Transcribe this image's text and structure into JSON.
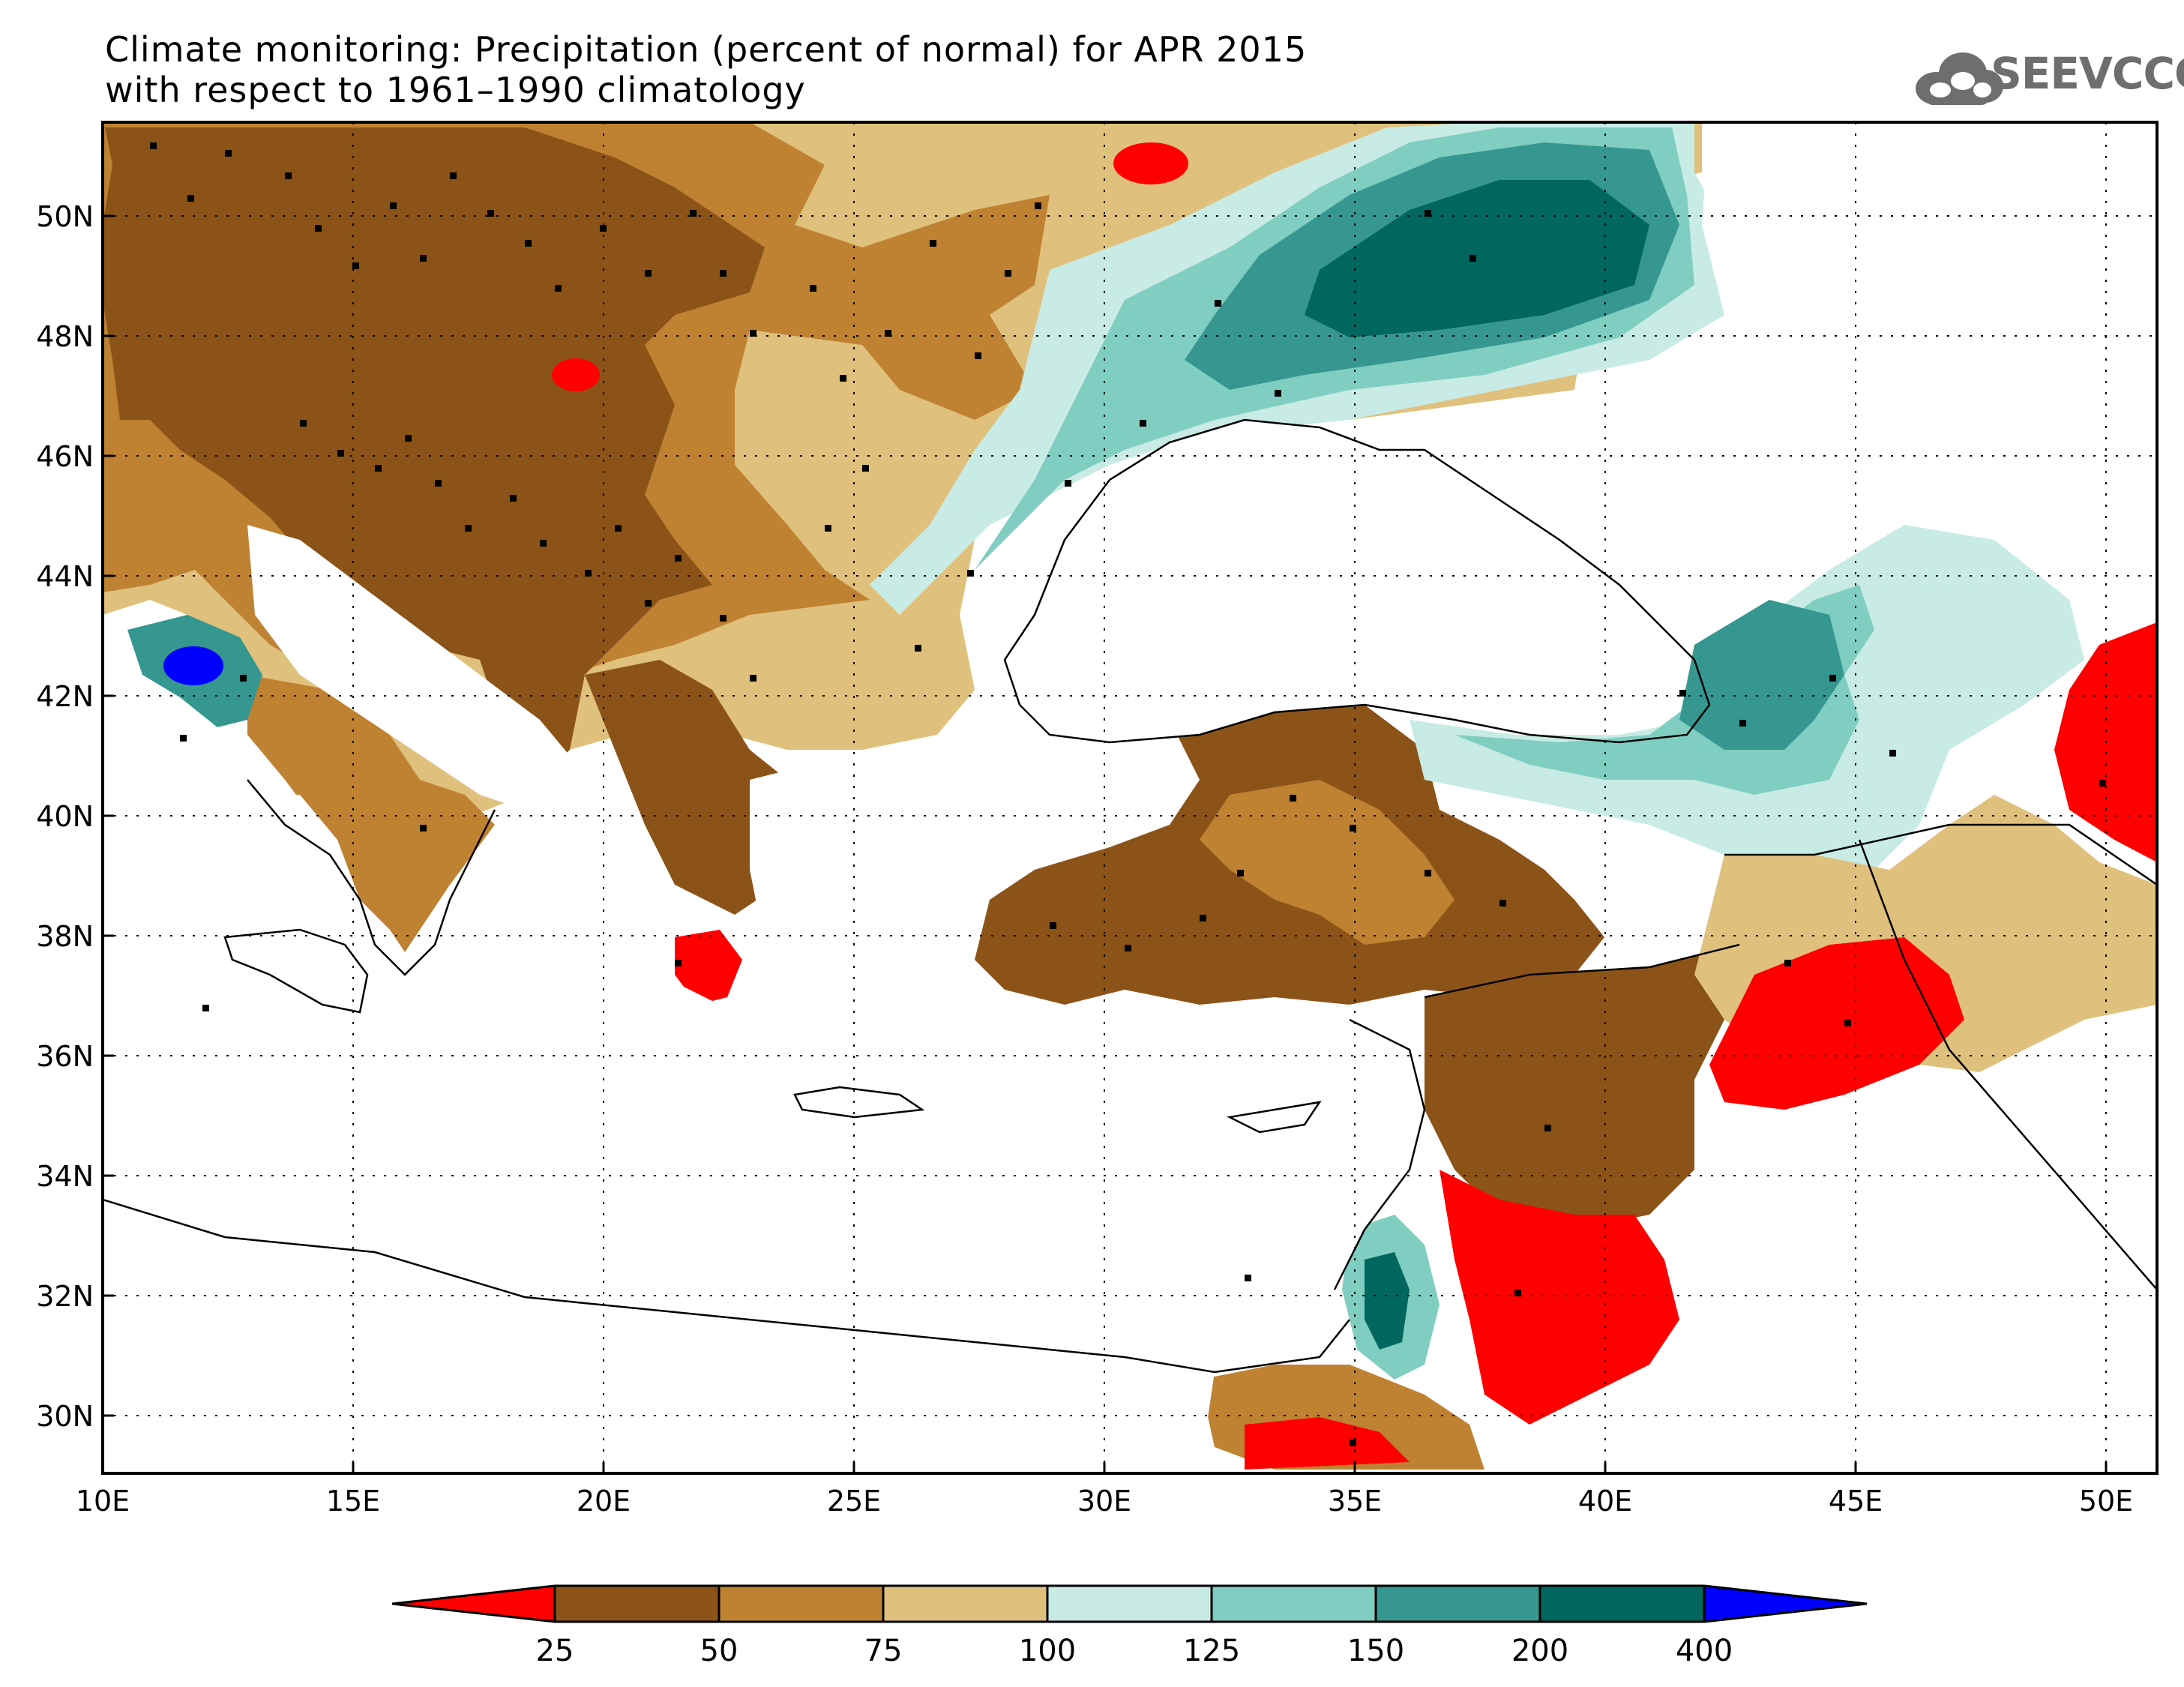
{
  "title": {
    "line1": "Climate monitoring: Precipitation (percent of normal) for APR 2015",
    "line2": "with respect to 1961–1990 climatology"
  },
  "logo": {
    "text": "SEEVCCC",
    "icon": "cloud-icon"
  },
  "map": {
    "lon_range": [
      10,
      51
    ],
    "lat_range": [
      29,
      51.5
    ],
    "lat_labels": [
      "30N",
      "32N",
      "34N",
      "36N",
      "38N",
      "40N",
      "42N",
      "44N",
      "46N",
      "48N",
      "50N"
    ],
    "lon_labels": [
      "10E",
      "15E",
      "20E",
      "25E",
      "30E",
      "35E",
      "40E",
      "45E",
      "50E"
    ]
  },
  "legend": {
    "thresholds": [
      "25",
      "50",
      "75",
      "100",
      "125",
      "150",
      "200",
      "400"
    ],
    "colors": [
      "#ff0000",
      "#8c5318",
      "#bf8232",
      "#dfc17d",
      "#c8ebe5",
      "#80cdc1",
      "#35978f",
      "#01665e",
      "#0000ff"
    ],
    "bins": [
      "<25",
      "25-50",
      "50-75",
      "75-100",
      "100-125",
      "125-150",
      "150-200",
      "200-400",
      ">400"
    ]
  }
}
